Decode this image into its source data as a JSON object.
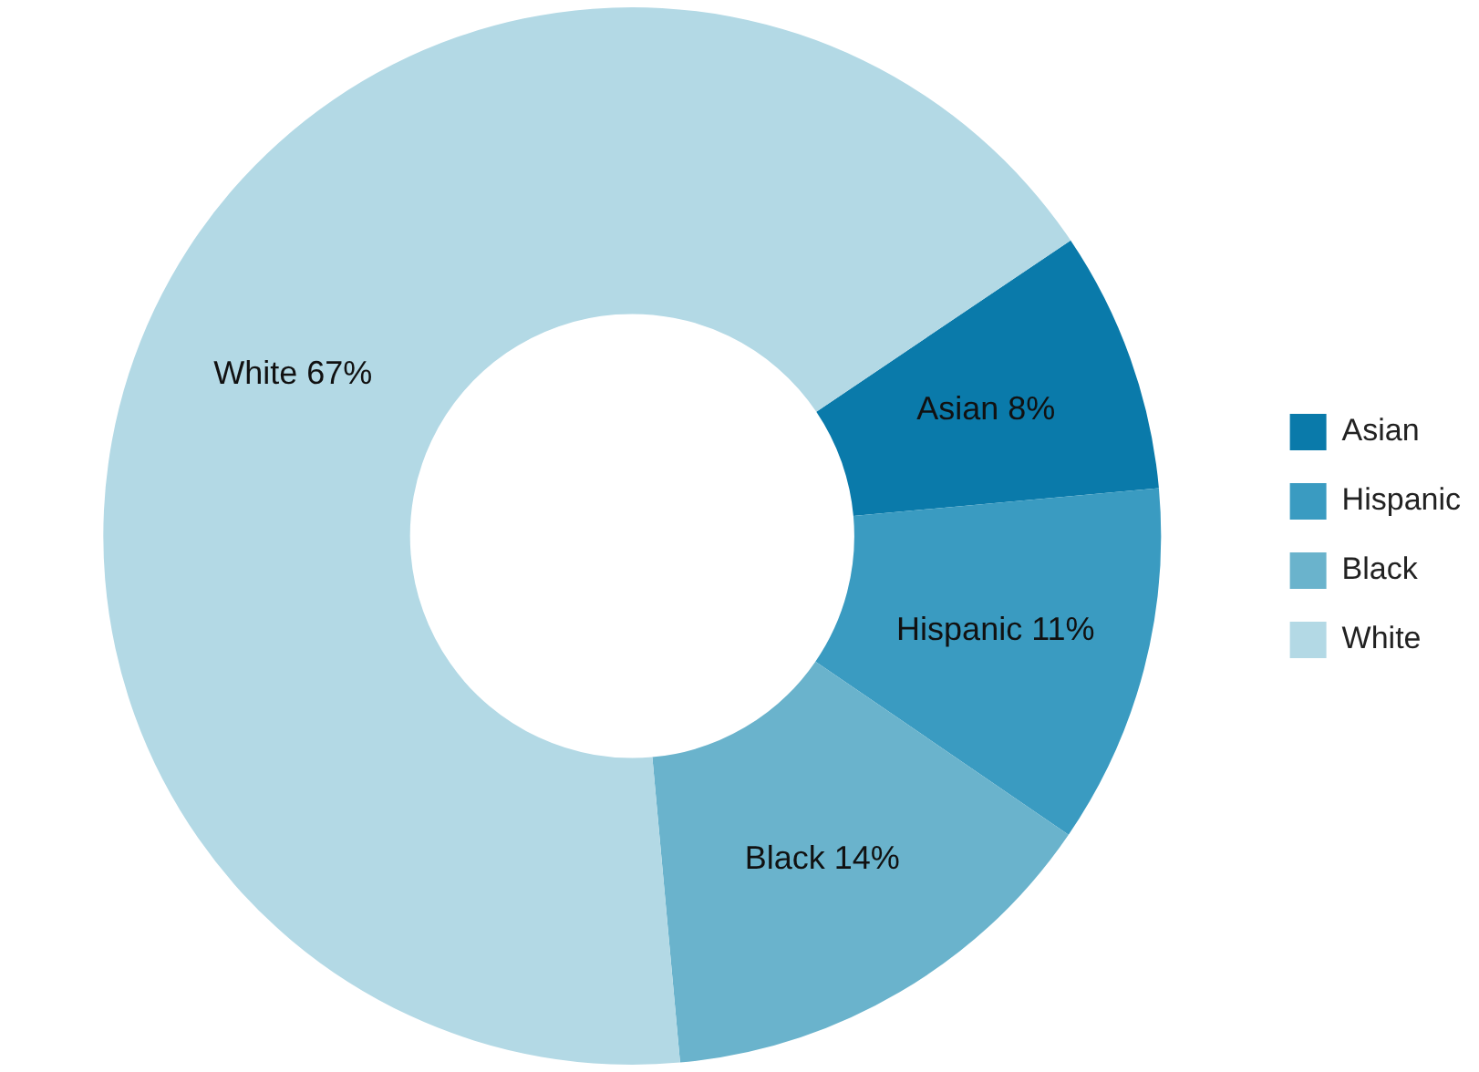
{
  "chart_data": {
    "type": "donut",
    "categories": [
      "Asian",
      "Hispanic",
      "Black",
      "White"
    ],
    "values": [
      8,
      11,
      14,
      67
    ],
    "colors": [
      "#0a7aaa",
      "#3a9bc1",
      "#6ab3cc",
      "#b3d9e5"
    ],
    "value_labels": [
      "Asian 8%",
      "Hispanic 11%",
      "Black 14%",
      "White 67%"
    ],
    "legend": "right"
  }
}
